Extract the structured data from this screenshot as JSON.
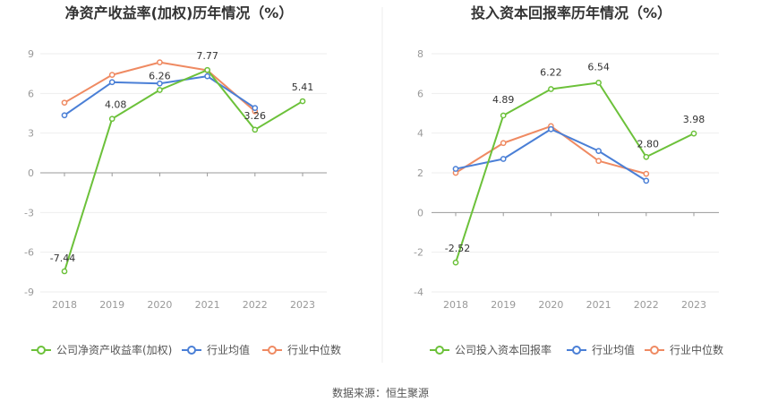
{
  "chart_data": [
    {
      "type": "line",
      "title": "净资产收益率(加权)历年情况（%）",
      "categories": [
        "2018",
        "2019",
        "2020",
        "2021",
        "2022",
        "2023"
      ],
      "yticks": [
        9,
        6,
        3,
        0,
        -3,
        -6,
        -9
      ],
      "ylim": [
        -9,
        9
      ],
      "series": [
        {
          "name": "公司净资产收益率(加权)",
          "color": "#6cc13a",
          "values": [
            -7.44,
            4.08,
            6.26,
            7.77,
            3.26,
            5.41
          ],
          "labels": [
            "-7.44",
            "4.08",
            "6.26",
            "7.77",
            "3.26",
            "5.41"
          ]
        },
        {
          "name": "行业均值",
          "color": "#4a7fd6",
          "values": [
            4.35,
            6.85,
            6.75,
            7.3,
            4.9,
            null
          ]
        },
        {
          "name": "行业中位数",
          "color": "#ef8a62",
          "values": [
            5.3,
            7.4,
            8.35,
            7.75,
            4.65,
            null
          ]
        }
      ]
    },
    {
      "type": "line",
      "title": "投入资本回报率历年情况（%）",
      "categories": [
        "2018",
        "2019",
        "2020",
        "2021",
        "2022",
        "2023"
      ],
      "yticks": [
        8,
        6,
        4,
        2,
        0,
        -2,
        -4
      ],
      "ylim": [
        -4,
        8
      ],
      "series": [
        {
          "name": "公司投入资本回报率",
          "color": "#6cc13a",
          "values": [
            -2.52,
            4.89,
            6.22,
            6.54,
            2.8,
            3.98
          ],
          "labels": [
            "-2.52",
            "4.89",
            "6.22",
            "6.54",
            "2.80",
            "3.98"
          ]
        },
        {
          "name": "行业均值",
          "color": "#4a7fd6",
          "values": [
            2.2,
            2.7,
            4.2,
            3.1,
            1.6,
            null
          ]
        },
        {
          "name": "行业中位数",
          "color": "#ef8a62",
          "values": [
            2.0,
            3.5,
            4.35,
            2.6,
            1.95,
            null
          ]
        }
      ]
    }
  ],
  "footer": {
    "source": "数据来源：恒生聚源"
  }
}
